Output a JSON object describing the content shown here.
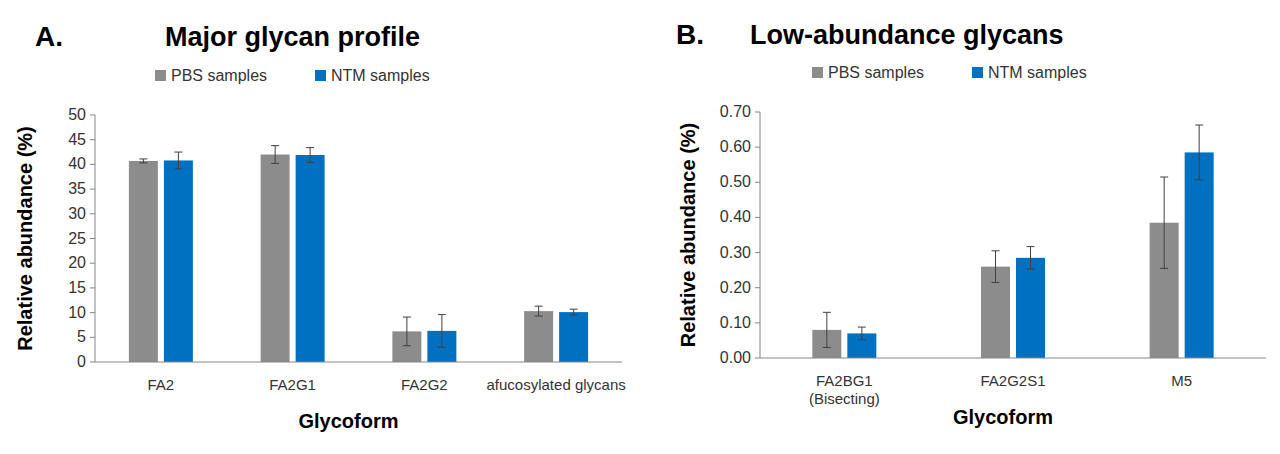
{
  "chart_data": [
    {
      "type": "bar",
      "annotation": "A.",
      "title": "Major glycan profile",
      "x_label": "Glycoform",
      "y_label": "Relative abundance (%)",
      "categories": [
        "FA2",
        "FA2G1",
        "FA2G2",
        "afucosylated glycans"
      ],
      "series": [
        {
          "name": "PBS samples",
          "color": "#8c8c8c",
          "values": [
            40.7,
            42.0,
            6.2,
            10.3
          ],
          "errors": [
            0.4,
            1.8,
            2.9,
            1.0
          ]
        },
        {
          "name": "NTM samples",
          "color": "#0070c0",
          "values": [
            40.8,
            41.9,
            6.3,
            10.1
          ],
          "errors": [
            1.7,
            1.5,
            3.3,
            0.6
          ]
        }
      ],
      "ylim": [
        0,
        50
      ],
      "yticks": [
        0,
        5,
        10,
        15,
        20,
        25,
        30,
        35,
        40,
        45,
        50
      ],
      "grid": false,
      "legend": "top"
    },
    {
      "type": "bar",
      "annotation": "B.",
      "title": "Low-abundance glycans",
      "x_label": "Glycoform",
      "y_label": "Relative abundance (%)",
      "categories": [
        "FA2BG1 (Bisecting)",
        "FA2G2S1",
        "M5"
      ],
      "series": [
        {
          "name": "PBS samples",
          "color": "#8c8c8c",
          "values": [
            0.08,
            0.26,
            0.385
          ],
          "errors": [
            0.05,
            0.045,
            0.13
          ]
        },
        {
          "name": "NTM samples",
          "color": "#0070c0",
          "values": [
            0.07,
            0.285,
            0.585
          ],
          "errors": [
            0.018,
            0.032,
            0.078
          ]
        }
      ],
      "ylim": [
        0,
        0.7
      ],
      "yticks": [
        {
          "value": 0,
          "label": "0.00"
        },
        {
          "value": 0.1,
          "label": "0.10"
        },
        {
          "value": 0.2,
          "label": "0.20"
        },
        {
          "value": 0.3,
          "label": "0.30"
        },
        {
          "value": 0.4,
          "label": "0.40"
        },
        {
          "value": 0.5,
          "label": "0.50"
        },
        {
          "value": 0.6,
          "label": "0.60"
        },
        {
          "value": 0.7,
          "label": "0.70"
        }
      ],
      "grid": false,
      "legend": "top"
    }
  ]
}
